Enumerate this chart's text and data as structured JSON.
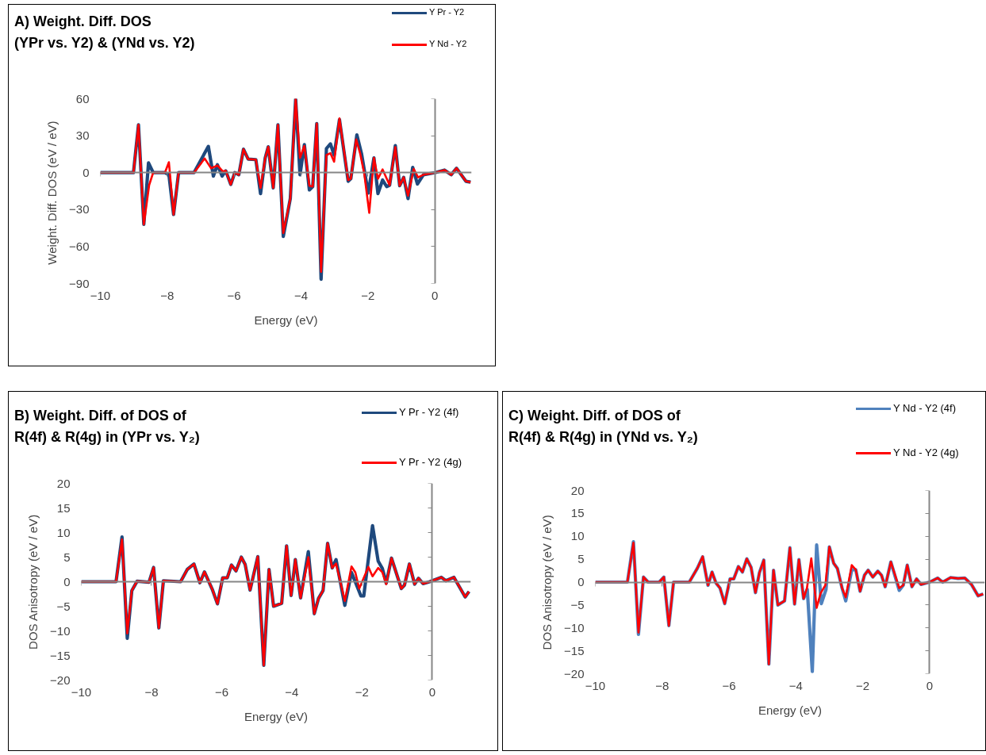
{
  "chart_data": [
    {
      "type": "line",
      "title": "A) Weight. Diff. DOS\n(YPr vs. Y2) & (YNd vs. Y2)",
      "xlabel": "Energy (eV)",
      "ylabel": "Weight. Diff. DOS  (eV / eV)",
      "xlim": [
        -10,
        1.1
      ],
      "xticks": [
        -10,
        -8,
        -6,
        -4,
        -2,
        0
      ],
      "ylim": [
        -90,
        60
      ],
      "yticks": [
        -90,
        -60,
        -30,
        0,
        30,
        60
      ],
      "legend": "top right",
      "line_style": "solid",
      "marker": "none",
      "series": [
        {
          "name": "Y Pr - Y2",
          "color": "#1f497d",
          "x": [
            -10,
            -9.01,
            -8.86,
            -8.7,
            -8.56,
            -8.42,
            -8.07,
            -7.95,
            -7.81,
            -7.66,
            -7.2,
            -6.77,
            -6.62,
            -6.5,
            -6.36,
            -6.25,
            -6.1,
            -5.98,
            -5.86,
            -5.72,
            -5.58,
            -5.35,
            -5.21,
            -5.07,
            -4.98,
            -4.83,
            -4.69,
            -4.53,
            -4.32,
            -4.16,
            -4.03,
            -3.9,
            -3.75,
            -3.65,
            -3.53,
            -3.4,
            -3.24,
            -3.12,
            -3.01,
            -2.85,
            -2.59,
            -2.51,
            -2.33,
            -2.19,
            -1.99,
            -1.82,
            -1.7,
            -1.56,
            -1.44,
            -1.35,
            -1.18,
            -1.05,
            -0.93,
            -0.8,
            -0.66,
            -0.52,
            -0.34,
            0,
            0.29,
            0.49,
            0.65,
            0.93,
            1.07
          ],
          "values": [
            0,
            0,
            38.8,
            -42,
            7.9,
            0,
            0,
            -1.7,
            -34,
            0,
            0,
            21.3,
            -2.8,
            6.4,
            -2.8,
            1.5,
            -9.6,
            0,
            -1.7,
            19,
            11,
            10.6,
            -17,
            12,
            21,
            -12.4,
            38.8,
            -51.8,
            -21,
            60,
            -1.7,
            22.8,
            -14,
            -11.3,
            39.8,
            -86.5,
            19.6,
            23.4,
            14.3,
            43,
            -7,
            -4.9,
            30.7,
            15.3,
            -16.6,
            12,
            -17,
            -6,
            -11.3,
            -10.2,
            22,
            -10.6,
            -3.8,
            -21,
            4.3,
            -9.2,
            -1.7,
            0,
            2.1,
            -1.7,
            3.6,
            -7,
            -7.7
          ]
        },
        {
          "name": "Y Nd - Y2",
          "color": "#ff0000",
          "x": [
            -10,
            -9.01,
            -8.86,
            -8.7,
            -8.54,
            -8.42,
            -8.07,
            -7.95,
            -7.81,
            -7.66,
            -7.2,
            -6.88,
            -6.69,
            -6.5,
            -6.33,
            -6.25,
            -6.1,
            -5.98,
            -5.86,
            -5.72,
            -5.58,
            -5.35,
            -5.21,
            -5.07,
            -4.98,
            -4.83,
            -4.69,
            -4.53,
            -4.32,
            -4.16,
            -4.03,
            -3.9,
            -3.75,
            -3.65,
            -3.53,
            -3.4,
            -3.24,
            -3.12,
            -3.01,
            -2.85,
            -2.59,
            -2.51,
            -2.35,
            -2.23,
            -2.11,
            -1.96,
            -1.82,
            -1.7,
            -1.56,
            -1.35,
            -1.18,
            -1.05,
            -0.93,
            -0.8,
            -0.63,
            -0.5,
            -0.34,
            0,
            0.29,
            0.49,
            0.65,
            0.93,
            1.07
          ],
          "values": [
            0,
            0,
            38.8,
            -42,
            -10,
            0,
            0,
            8.5,
            -34,
            0,
            0,
            11.5,
            3.6,
            5.8,
            0.9,
            1.5,
            -9.6,
            0,
            -1.7,
            19,
            11,
            10.6,
            -12.4,
            12,
            21,
            -12.4,
            38.8,
            -49,
            -21,
            60,
            12,
            21.7,
            -10.6,
            -11.3,
            39.8,
            -80.5,
            14.3,
            15.8,
            8.9,
            44,
            -6,
            -4.9,
            27,
            15.3,
            -0.6,
            -32.6,
            12,
            -4.9,
            2.6,
            -10.2,
            20.7,
            -10.6,
            -3.8,
            -18.7,
            3,
            -3.8,
            -1.7,
            0,
            2.1,
            -1.7,
            3.6,
            -7,
            -7.7
          ]
        }
      ]
    },
    {
      "type": "line",
      "title": "B) Weight. Diff. of DOS of\nR(4f) & R(4g) in (YPr vs. Y₂)",
      "xlabel": "Energy (eV)",
      "ylabel": "DOS Anisotropy (eV / eV)",
      "xlim": [
        -10,
        1.1
      ],
      "xticks": [
        -10,
        -8,
        -6,
        -4,
        -2,
        0
      ],
      "ylim": [
        -20,
        20
      ],
      "yticks": [
        -20,
        -15,
        -10,
        -5,
        0,
        5,
        10,
        15,
        20
      ],
      "legend": "top right",
      "line_style": "solid",
      "marker": "none",
      "series": [
        {
          "name": "Y Pr - Y2 (4f)",
          "color": "#1f497d",
          "x": [
            -10,
            -9.01,
            -8.84,
            -8.69,
            -8.56,
            -8.41,
            -8.07,
            -7.94,
            -7.79,
            -7.66,
            -7.17,
            -6.98,
            -6.79,
            -6.62,
            -6.49,
            -6.27,
            -6.12,
            -5.97,
            -5.84,
            -5.72,
            -5.59,
            -5.44,
            -5.33,
            -5.19,
            -4.97,
            -4.8,
            -4.65,
            -4.52,
            -4.29,
            -4.15,
            -4.02,
            -3.9,
            -3.75,
            -3.53,
            -3.36,
            -3.24,
            -3.11,
            -2.98,
            -2.85,
            -2.74,
            -2.49,
            -2.3,
            -2.03,
            -1.95,
            -1.7,
            -1.54,
            -1.42,
            -1.31,
            -1.16,
            -0.88,
            -0.79,
            -0.65,
            -0.5,
            -0.39,
            -0.26,
            -0.07,
            0.26,
            0.39,
            0.62,
            0.94,
            1.05
          ],
          "values": [
            0,
            0,
            9.1,
            -11.5,
            -1.8,
            0.1,
            -0.1,
            2.9,
            -9.4,
            0.2,
            0,
            2.5,
            3.6,
            -0.2,
            2,
            -1.5,
            -4.5,
            0.8,
            0.8,
            3.4,
            2.2,
            5,
            3.5,
            -1.7,
            5.1,
            -17,
            2.5,
            -5,
            -4.4,
            7.3,
            -2.8,
            4.5,
            -3.3,
            6.1,
            -6.5,
            -3.4,
            -1.8,
            7.8,
            2.8,
            4.5,
            -4.8,
            1.9,
            -2.9,
            -2.9,
            11.4,
            4.2,
            2.7,
            -0.3,
            4.8,
            -1.4,
            -0.7,
            3.6,
            -0.5,
            0.7,
            -0.4,
            0,
            0.9,
            0.2,
            0.9,
            -3.1,
            -2
          ]
        },
        {
          "name": "Y Pr - Y2 (4g)",
          "color": "#ff0000",
          "x": [
            -10,
            -9.01,
            -8.84,
            -8.69,
            -8.56,
            -8.41,
            -8.07,
            -7.94,
            -7.79,
            -7.66,
            -7.17,
            -6.98,
            -6.79,
            -6.62,
            -6.49,
            -6.27,
            -6.12,
            -5.97,
            -5.84,
            -5.72,
            -5.59,
            -5.44,
            -5.33,
            -5.19,
            -4.97,
            -4.8,
            -4.65,
            -4.52,
            -4.29,
            -4.15,
            -4.02,
            -3.9,
            -3.75,
            -3.53,
            -3.36,
            -3.24,
            -3.11,
            -2.98,
            -2.85,
            -2.74,
            -2.49,
            -2.3,
            -2.19,
            -2.08,
            -1.82,
            -1.7,
            -1.54,
            -1.42,
            -1.31,
            -1.16,
            -0.88,
            -0.79,
            -0.65,
            -0.5,
            -0.39,
            -0.26,
            -0.07,
            0.26,
            0.39,
            0.62,
            0.94,
            1.05
          ],
          "values": [
            0,
            0,
            8.6,
            -10.5,
            -1.8,
            0.1,
            -0.1,
            2.9,
            -9.4,
            0.2,
            0,
            2.5,
            3.6,
            -0.2,
            2,
            -1.5,
            -4.5,
            0.8,
            0.8,
            3.4,
            2.2,
            5,
            3.5,
            -1.7,
            5.1,
            -17,
            2.5,
            -5,
            -4.4,
            7.3,
            -2.8,
            4.5,
            -3.3,
            5,
            -6.5,
            -3.4,
            -1.8,
            7.8,
            2.8,
            3.7,
            -3.9,
            3.1,
            1.9,
            -1.4,
            3,
            1.1,
            2.8,
            1.9,
            -0.5,
            4.8,
            -1.4,
            -0.7,
            3.6,
            -0.5,
            0.7,
            -0.4,
            0,
            0.9,
            0.2,
            0.9,
            -3.1,
            -2
          ]
        }
      ]
    },
    {
      "type": "line",
      "title": "C) Weight. Diff. of DOS of\nR(4f) & R(4g) in (YNd vs. Y₂)",
      "xlabel": "Energy (eV)",
      "ylabel": "DOS Anisotropy (eV / eV)",
      "xlim": [
        -10,
        1.65
      ],
      "xticks": [
        -10,
        -8,
        -6,
        -4,
        -2,
        0
      ],
      "ylim": [
        -20,
        20
      ],
      "yticks": [
        -20,
        -15,
        -10,
        -5,
        0,
        5,
        10,
        15,
        20
      ],
      "legend": "top right",
      "line_style": "solid",
      "marker": "none",
      "series": [
        {
          "name": "Y Nd - Y2 (4f)",
          "color": "#4f81bd",
          "x": [
            -10,
            -9.04,
            -8.86,
            -8.71,
            -8.56,
            -8.42,
            -8.09,
            -7.95,
            -7.8,
            -7.66,
            -7.19,
            -6.95,
            -6.79,
            -6.63,
            -6.51,
            -6.39,
            -6.27,
            -6.13,
            -5.97,
            -5.86,
            -5.72,
            -5.6,
            -5.47,
            -5.34,
            -5.21,
            -5.09,
            -4.96,
            -4.81,
            -4.67,
            -4.54,
            -4.34,
            -4.18,
            -4.04,
            -3.91,
            -3.77,
            -3.66,
            -3.51,
            -3.38,
            -3.24,
            -3.1,
            -3.0,
            -2.87,
            -2.76,
            -2.62,
            -2.51,
            -2.33,
            -2.21,
            -2.08,
            -1.95,
            -1.84,
            -1.7,
            -1.55,
            -1.44,
            -1.33,
            -1.16,
            -0.91,
            -0.79,
            -0.67,
            -0.53,
            -0.39,
            -0.26,
            0,
            0.24,
            0.39,
            0.63,
            0.85,
            1.05,
            1.25,
            1.45,
            1.6
          ],
          "values": [
            0,
            0,
            8.8,
            -11.4,
            1.1,
            0,
            0,
            1.1,
            -9.5,
            0,
            0,
            3,
            5.5,
            -0.7,
            2.2,
            -0.2,
            -1.3,
            -4.7,
            0.7,
            0.7,
            3.4,
            2.2,
            5.1,
            3.2,
            -2.3,
            2.1,
            4.8,
            -17.9,
            2.6,
            -5,
            -4.1,
            7.5,
            -4.8,
            4.9,
            -3.6,
            -1.6,
            -19.5,
            8.1,
            -4.7,
            -1.6,
            7.7,
            4.1,
            3,
            -1.3,
            -4.1,
            2.7,
            2.7,
            -2,
            1.5,
            2.6,
            1.1,
            2.4,
            1.5,
            -1,
            4.4,
            -1.8,
            -0.7,
            3.7,
            -1,
            0.7,
            -0.5,
            0,
            0.9,
            0,
            1,
            0.8,
            0.9,
            -0.5,
            -3,
            -2.6
          ]
        },
        {
          "name": "Y Nd - Y2 (4g)",
          "color": "#ff0000",
          "x": [
            -10,
            -9.04,
            -8.86,
            -8.71,
            -8.56,
            -8.42,
            -8.09,
            -7.95,
            -7.8,
            -7.66,
            -7.19,
            -6.95,
            -6.79,
            -6.63,
            -6.51,
            -6.39,
            -6.27,
            -6.13,
            -5.97,
            -5.86,
            -5.72,
            -5.6,
            -5.47,
            -5.34,
            -5.21,
            -5.09,
            -4.96,
            -4.81,
            -4.67,
            -4.54,
            -4.34,
            -4.18,
            -4.04,
            -3.91,
            -3.77,
            -3.67,
            -3.54,
            -3.38,
            -3.26,
            -3.12,
            -3.0,
            -2.87,
            -2.76,
            -2.62,
            -2.51,
            -2.33,
            -2.21,
            -2.08,
            -1.95,
            -1.84,
            -1.7,
            -1.55,
            -1.44,
            -1.33,
            -1.16,
            -0.91,
            -0.79,
            -0.67,
            -0.53,
            -0.39,
            -0.26,
            0,
            0.24,
            0.39,
            0.63,
            0.85,
            1.05,
            1.25,
            1.45,
            1.6
          ],
          "values": [
            0,
            0,
            8.6,
            -11,
            1.1,
            0,
            0,
            1.1,
            -9.5,
            0,
            0,
            3,
            5.6,
            -0.7,
            2.2,
            -0.2,
            -1.3,
            -4.7,
            0.7,
            0.7,
            3.4,
            2.2,
            5.1,
            3.2,
            -2.3,
            2.1,
            4.8,
            -17.9,
            2.6,
            -5,
            -4.1,
            7.5,
            -4.8,
            4.9,
            -3.6,
            -1.3,
            5.2,
            -5.6,
            -2.4,
            -0.7,
            7.7,
            4.1,
            3,
            -1.3,
            -3.3,
            3.7,
            2.7,
            -2,
            1.5,
            2.6,
            1.1,
            2.4,
            1.5,
            -1,
            4.4,
            -1.3,
            -0.7,
            3.7,
            -1,
            0.7,
            -0.5,
            0,
            0.9,
            0,
            1,
            0.8,
            0.9,
            -0.5,
            -3,
            -2.6
          ]
        }
      ]
    }
  ]
}
